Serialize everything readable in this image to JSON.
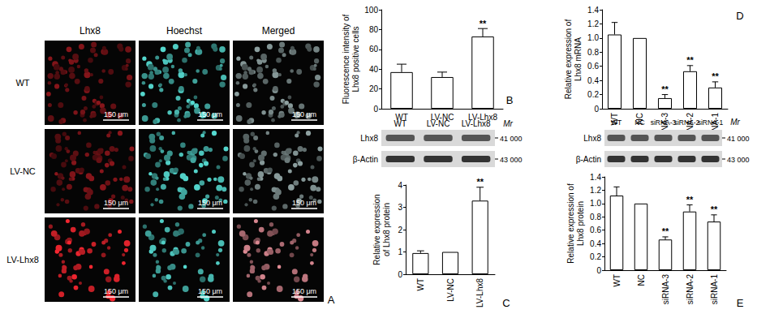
{
  "panel_a": {
    "letter": "A",
    "columns": [
      "Lhx8",
      "Hoechst",
      "Merged"
    ],
    "rows": [
      "WT",
      "LV-NC",
      "LV-Lhx8"
    ],
    "scale_bar": "150 μm"
  },
  "blots": [
    {
      "panel": "C",
      "lanes": [
        "WT",
        "LV-NC",
        "LV-Lhx8"
      ],
      "mr_label": "Mr",
      "rows": [
        {
          "label": "Lhx8",
          "mr": "41 000"
        },
        {
          "label": "β-Actin",
          "mr": "43 000"
        }
      ]
    },
    {
      "panel": "E",
      "lanes": [
        "WT",
        "NC",
        "siRNA-3",
        "siRNA-2",
        "siRNA-1"
      ],
      "mr_label": "Mr",
      "rows": [
        {
          "label": "Lhx8",
          "mr": "41 000"
        },
        {
          "label": "β-Actin",
          "mr": "43 000"
        }
      ]
    }
  ],
  "chart_data": [
    {
      "panel": "B",
      "type": "bar",
      "y_label": "Fluorescence intensity of\nLhx8 positive cells",
      "categories": [
        "WT",
        "LV-NC",
        "LV-Lhx8"
      ],
      "values": [
        37,
        32,
        73
      ],
      "errors": [
        8,
        5,
        8
      ],
      "annotations": [
        null,
        null,
        "**"
      ],
      "color": "#ffffff",
      "ylim": [
        0,
        100
      ],
      "yticks": [
        0,
        20,
        40,
        60,
        80,
        100
      ],
      "grid": false
    },
    {
      "panel": "D",
      "type": "bar",
      "y_label": "Relative expression of\nLhx8 mRNA",
      "categories": [
        "WT",
        "NC",
        "siRNA-3",
        "siRNA-2",
        "siRNA-1"
      ],
      "values": [
        1.05,
        1.0,
        0.15,
        0.53,
        0.3
      ],
      "errors": [
        0.17,
        0,
        0.05,
        0.08,
        0.08
      ],
      "annotations": [
        null,
        null,
        "**",
        "**",
        "**"
      ],
      "color": "#ffffff",
      "ylim": [
        0,
        1.4
      ],
      "yticks": [
        0,
        0.2,
        0.4,
        0.6,
        0.8,
        {
          "value": 1,
          "label": "1.0"
        },
        1.2,
        1.4
      ],
      "grid": false
    },
    {
      "panel": "C",
      "type": "bar",
      "y_label": "Relative expression\nof Lhx8 protein",
      "categories": [
        "WT",
        "LV-NC",
        "LV-Lhx8"
      ],
      "values": [
        0.95,
        1.0,
        3.3
      ],
      "errors": [
        0.1,
        0,
        0.6
      ],
      "annotations": [
        null,
        null,
        "**"
      ],
      "color": "#ffffff",
      "ylim": [
        0,
        4
      ],
      "yticks": [
        0,
        1,
        2,
        3,
        4
      ],
      "grid": false
    },
    {
      "panel": "E",
      "type": "bar",
      "y_label": "Relative expression of\nLhx8 protein",
      "categories": [
        "WT",
        "NC",
        "siRNA-3",
        "siRNA-2",
        "siRNA-1"
      ],
      "values": [
        1.12,
        1.0,
        0.46,
        0.88,
        0.73
      ],
      "errors": [
        0.13,
        0,
        0.04,
        0.1,
        0.1
      ],
      "annotations": [
        null,
        null,
        "**",
        "**",
        "**"
      ],
      "color": "#ffffff",
      "ylim": [
        0,
        1.4
      ],
      "yticks": [
        0,
        0.2,
        0.4,
        0.6,
        0.8,
        {
          "value": 1,
          "label": "1.0"
        },
        1.2,
        1.4
      ],
      "grid": false
    }
  ]
}
